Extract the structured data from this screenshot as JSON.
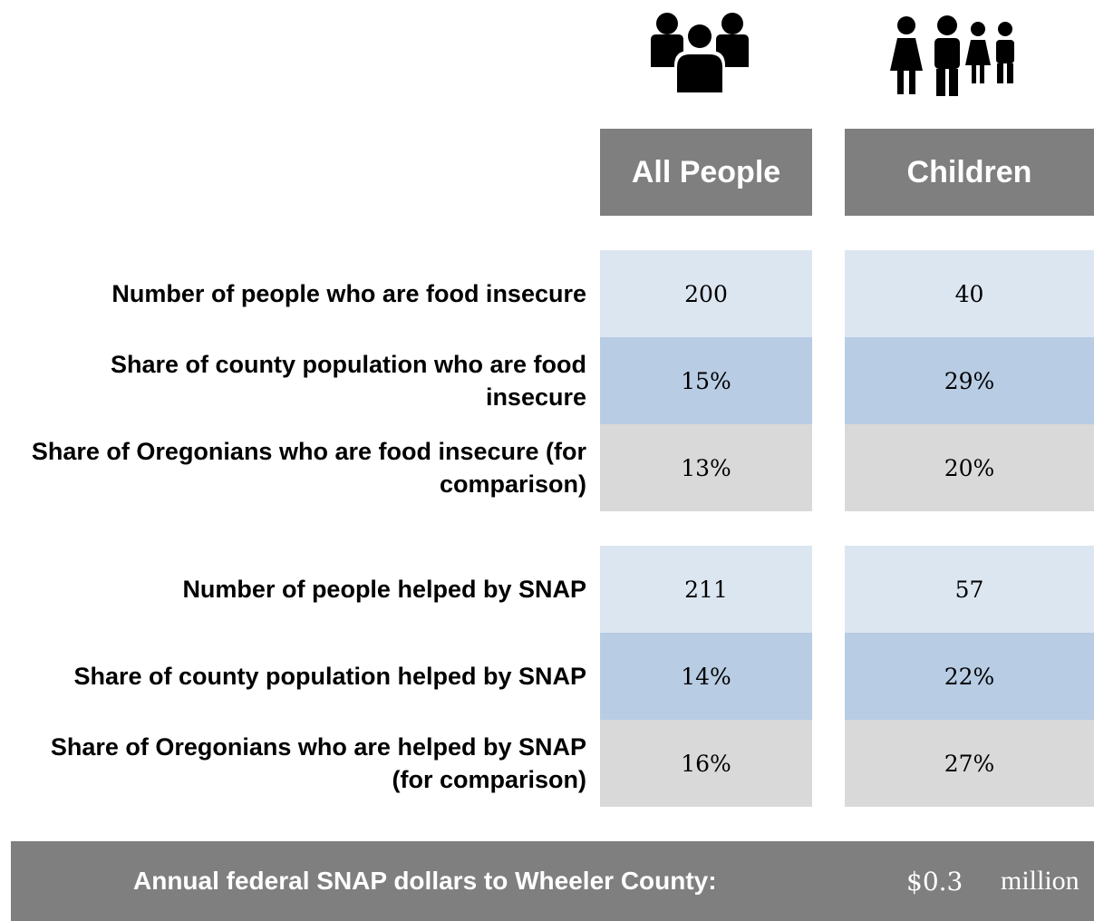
{
  "icons": {
    "all_people": "group-of-people-icon",
    "children": "children-icon"
  },
  "headers": {
    "all_people": "All People",
    "children": "Children"
  },
  "food_insecurity": [
    {
      "label": "Number of people who are food insecure",
      "all_people": "200",
      "children": "40"
    },
    {
      "label": "Share of county population who are food insecure",
      "all_people": "15%",
      "children": "29%"
    },
    {
      "label": "Share of Oregonians who are food insecure (for comparison)",
      "all_people": "13%",
      "children": "20%"
    }
  ],
  "snap": [
    {
      "label": "Number of people helped by SNAP",
      "all_people": "211",
      "children": "57"
    },
    {
      "label": "Share of county population helped by SNAP",
      "all_people": "14%",
      "children": "22%"
    },
    {
      "label": "Share of Oregonians who are helped by SNAP (for comparison)",
      "all_people": "16%",
      "children": "27%"
    }
  ],
  "footer": {
    "label": "Annual federal SNAP dollars to Wheeler County:",
    "value": "$0.3",
    "unit": "million"
  },
  "colors": {
    "header_bg": "#7f7f7f",
    "row_light": "#dce6f1",
    "row_mid": "#b8cce4",
    "row_grey": "#d9d9d9"
  }
}
